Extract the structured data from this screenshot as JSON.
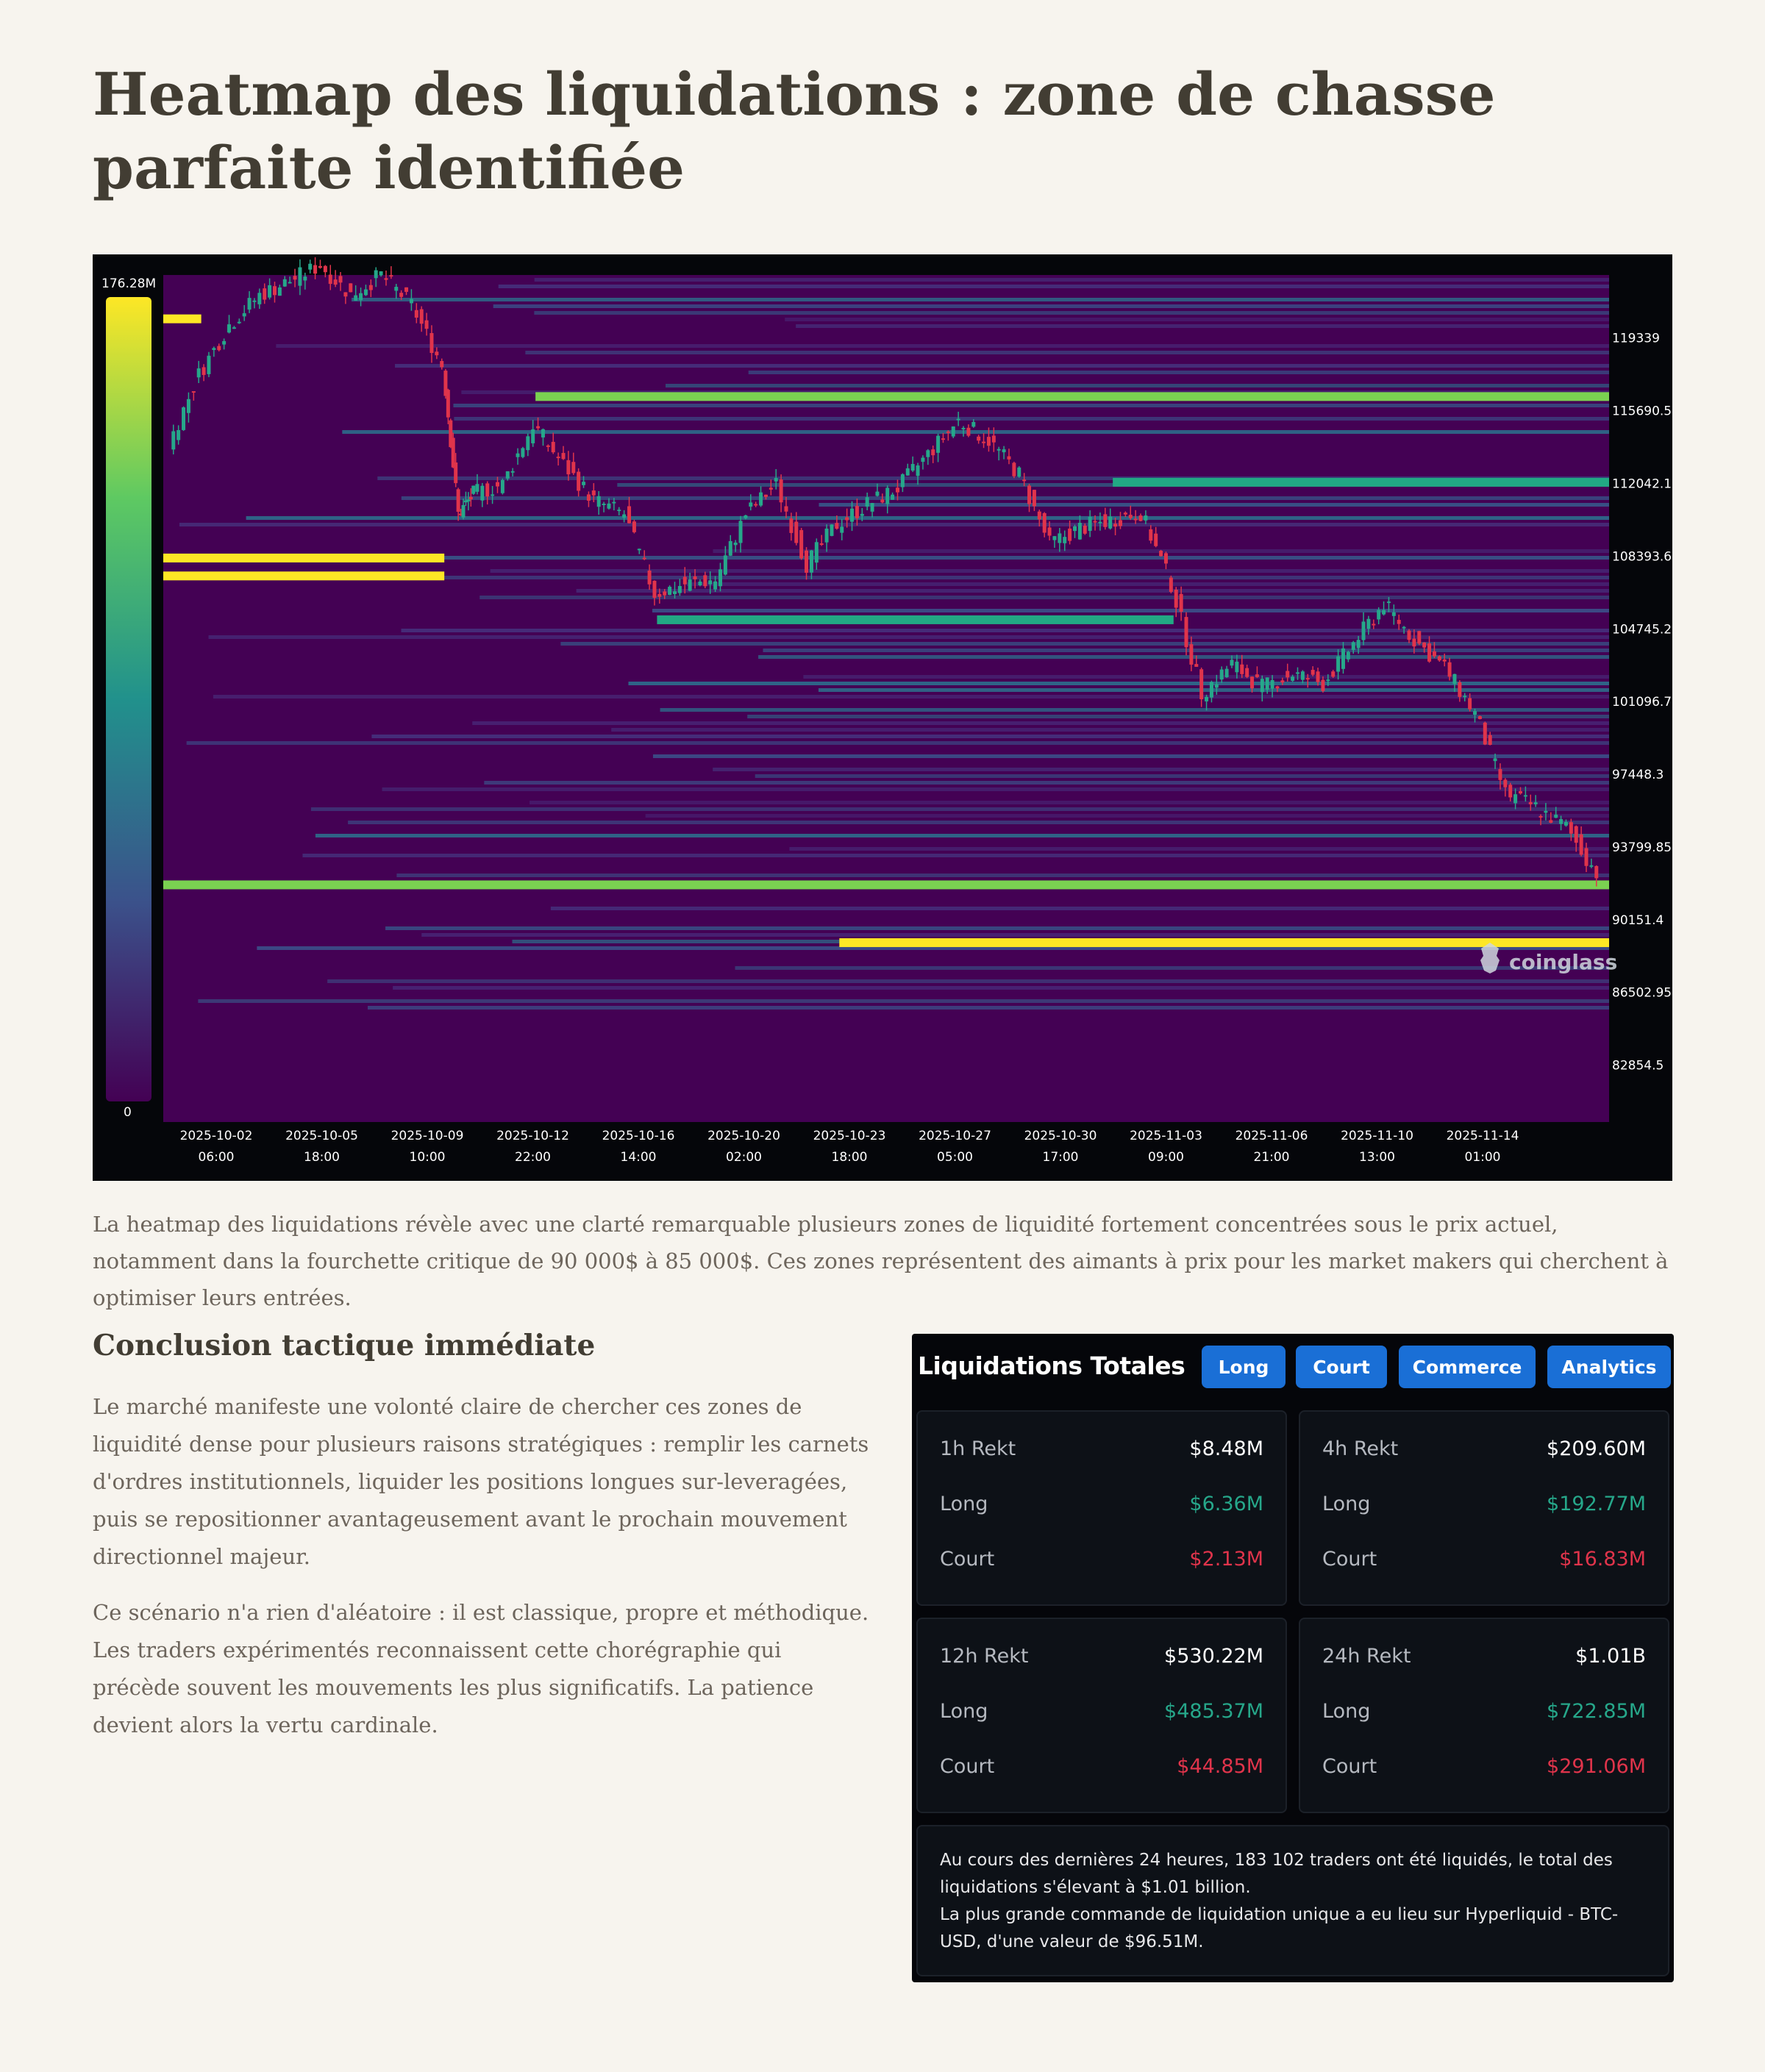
{
  "article": {
    "title": "Heatmap des liquidations : zone de chasse parfaite identifiée",
    "caption": "La heatmap des liquidations révèle avec une clarté remarquable plusieurs zones de liquidité fortement concentrées sous le prix actuel, notamment dans la fourchette critique de 90 000$ à 85 000$. Ces zones représentent des aimants à prix pour les market makers qui cherchent à optimiser leurs entrées.",
    "section_title": "Conclusion tactique immédiate",
    "paragraph_1": "Le marché manifeste une volonté claire de chercher ces zones de liquidité dense pour plusieurs raisons stratégiques : remplir les carnets d'ordres institutionnels, liquider les positions longues sur-leveragées, puis se repositionner avantageusement avant le prochain mouvement directionnel majeur.",
    "paragraph_2": "Ce scénario n'a rien d'aléatoire : il est classique, propre et méthodique. Les traders expérimentés reconnaissent cette chorégraphie qui précède souvent les mouvements les plus significatifs. La patience devient alors la vertu cardinale."
  },
  "chart_data": {
    "type": "heatmap",
    "title": "",
    "colorbar": {
      "max_label": "176.28M",
      "min_label": "0",
      "colormap": "viridis"
    },
    "watermark": "coinglass",
    "y_axis": {
      "side": "right",
      "ylim": [
        80000,
        122500
      ],
      "ticks": [
        {
          "label": "119339",
          "value": 119339
        },
        {
          "label": "115690.55",
          "value": 115690.55
        },
        {
          "label": "112042.1",
          "value": 112042.1
        },
        {
          "label": "108393.65",
          "value": 108393.65
        },
        {
          "label": "104745.2",
          "value": 104745.2
        },
        {
          "label": "101096.75",
          "value": 101096.75
        },
        {
          "label": "97448.3",
          "value": 97448.3
        },
        {
          "label": "93799.85",
          "value": 93799.85
        },
        {
          "label": "90151.4",
          "value": 90151.4
        },
        {
          "label": "86502.95",
          "value": 86502.95
        },
        {
          "label": "82854.5",
          "value": 82854.5
        }
      ]
    },
    "x_axis": {
      "ticks": [
        {
          "date": "2025-10-02",
          "time": "06:00"
        },
        {
          "date": "2025-10-05",
          "time": "18:00"
        },
        {
          "date": "2025-10-09",
          "time": "10:00"
        },
        {
          "date": "2025-10-12",
          "time": "22:00"
        },
        {
          "date": "2025-10-16",
          "time": "14:00"
        },
        {
          "date": "2025-10-20",
          "time": "02:00"
        },
        {
          "date": "2025-10-23",
          "time": "18:00"
        },
        {
          "date": "2025-10-27",
          "time": "05:00"
        },
        {
          "date": "2025-10-30",
          "time": "17:00"
        },
        {
          "date": "2025-11-03",
          "time": "09:00"
        },
        {
          "date": "2025-11-06",
          "time": "21:00"
        },
        {
          "date": "2025-11-10",
          "time": "13:00"
        },
        {
          "date": "2025-11-14",
          "time": "01:00"
        }
      ]
    },
    "price_path": [
      {
        "x": "2025-10-01 12:00",
        "price": 114000
      },
      {
        "x": "2025-10-02 12:00",
        "price": 117500
      },
      {
        "x": "2025-10-03 12:00",
        "price": 120000
      },
      {
        "x": "2025-10-04 12:00",
        "price": 121500
      },
      {
        "x": "2025-10-05 12:00",
        "price": 122200
      },
      {
        "x": "2025-10-06 12:00",
        "price": 123000
      },
      {
        "x": "2025-10-07 12:00",
        "price": 121500
      },
      {
        "x": "2025-10-08 12:00",
        "price": 122500
      },
      {
        "x": "2025-10-09 12:00",
        "price": 121000
      },
      {
        "x": "2025-10-10 12:00",
        "price": 118000
      },
      {
        "x": "2025-10-11 00:00",
        "price": 110500
      },
      {
        "x": "2025-10-11 12:00",
        "price": 111500
      },
      {
        "x": "2025-10-12 12:00",
        "price": 112000
      },
      {
        "x": "2025-10-13 12:00",
        "price": 115000
      },
      {
        "x": "2025-10-14 12:00",
        "price": 113000
      },
      {
        "x": "2025-10-15 12:00",
        "price": 111200
      },
      {
        "x": "2025-10-16 12:00",
        "price": 110500
      },
      {
        "x": "2025-10-17 12:00",
        "price": 106500
      },
      {
        "x": "2025-10-18 12:00",
        "price": 107000
      },
      {
        "x": "2025-10-19 12:00",
        "price": 107200
      },
      {
        "x": "2025-10-20 12:00",
        "price": 110500
      },
      {
        "x": "2025-10-21 12:00",
        "price": 112000
      },
      {
        "x": "2025-10-22 12:00",
        "price": 108000
      },
      {
        "x": "2025-10-23 12:00",
        "price": 110000
      },
      {
        "x": "2025-10-24 12:00",
        "price": 111000
      },
      {
        "x": "2025-10-25 12:00",
        "price": 111800
      },
      {
        "x": "2025-10-26 12:00",
        "price": 113500
      },
      {
        "x": "2025-10-27 12:00",
        "price": 115200
      },
      {
        "x": "2025-10-28 12:00",
        "price": 114200
      },
      {
        "x": "2025-10-29 12:00",
        "price": 112500
      },
      {
        "x": "2025-10-30 12:00",
        "price": 109000
      },
      {
        "x": "2025-10-31 12:00",
        "price": 109800
      },
      {
        "x": "2025-11-01 12:00",
        "price": 110200
      },
      {
        "x": "2025-11-02 12:00",
        "price": 110600
      },
      {
        "x": "2025-11-03 12:00",
        "price": 107000
      },
      {
        "x": "2025-11-04 12:00",
        "price": 101500
      },
      {
        "x": "2025-11-05 12:00",
        "price": 103000
      },
      {
        "x": "2025-11-06 12:00",
        "price": 101800
      },
      {
        "x": "2025-11-07 12:00",
        "price": 102500
      },
      {
        "x": "2025-11-08 12:00",
        "price": 102000
      },
      {
        "x": "2025-11-09 12:00",
        "price": 104000
      },
      {
        "x": "2025-11-10 12:00",
        "price": 106000
      },
      {
        "x": "2025-11-11 12:00",
        "price": 104200
      },
      {
        "x": "2025-11-12 12:00",
        "price": 102800
      },
      {
        "x": "2025-11-13 12:00",
        "price": 100500
      },
      {
        "x": "2025-11-14 12:00",
        "price": 96500
      },
      {
        "x": "2025-11-15 12:00",
        "price": 95800
      },
      {
        "x": "2025-11-16 12:00",
        "price": 94800
      },
      {
        "x": "2025-11-17 12:00",
        "price": 92500
      }
    ],
    "bright_liquidity_levels": [
      {
        "price": 116400,
        "from": "2025-10-13 12:00",
        "to": "end",
        "intensity": "high"
      },
      {
        "price": 112100,
        "from": "2025-11-01 12:00",
        "to": "end",
        "intensity": "medium"
      },
      {
        "price": 108300,
        "from": "start",
        "to": "2025-10-10 12:00",
        "intensity": "very high"
      },
      {
        "price": 107400,
        "from": "start",
        "to": "2025-10-10 12:00",
        "intensity": "very high"
      },
      {
        "price": 105200,
        "from": "2025-10-17 12:00",
        "to": "2025-11-03 12:00",
        "intensity": "medium"
      },
      {
        "price": 120300,
        "from": "start",
        "to": "2025-10-02 12:00",
        "intensity": "very high"
      },
      {
        "price": 91900,
        "from": "start",
        "to": "end",
        "intensity": "high"
      },
      {
        "price": 89000,
        "from": "2025-10-23 12:00",
        "to": "end",
        "intensity": "very high"
      }
    ]
  },
  "liquidations": {
    "title": "Liquidations Totales",
    "tabs": [
      "Long",
      "Court",
      "Commerce",
      "Analytics"
    ],
    "cards": [
      {
        "label": "1h Rekt",
        "total": "$8.48M",
        "long_label": "Long",
        "long": "$6.36M",
        "short_label": "Court",
        "short": "$2.13M"
      },
      {
        "label": "4h Rekt",
        "total": "$209.60M",
        "long_label": "Long",
        "long": "$192.77M",
        "short_label": "Court",
        "short": "$16.83M"
      },
      {
        "label": "12h Rekt",
        "total": "$530.22M",
        "long_label": "Long",
        "long": "$485.37M",
        "short_label": "Court",
        "short": "$44.85M"
      },
      {
        "label": "24h Rekt",
        "total": "$1.01B",
        "long_label": "Long",
        "long": "$722.85M",
        "short_label": "Court",
        "short": "$291.06M"
      }
    ],
    "summary_line_1": "Au cours des dernières 24 heures, 183 102 traders ont été liquidés, le total des liquidations s'élevant à $1.01 billion.",
    "summary_line_2": "La plus grande commande de liquidation unique a eu lieu sur Hyperliquid - BTC-USD, d'une valeur de $96.51M."
  },
  "colors": {
    "page_bg": "#f7f4ee",
    "accent_blue": "#1a6fd6",
    "long_green": "#26a78a",
    "short_red": "#e0344b"
  }
}
